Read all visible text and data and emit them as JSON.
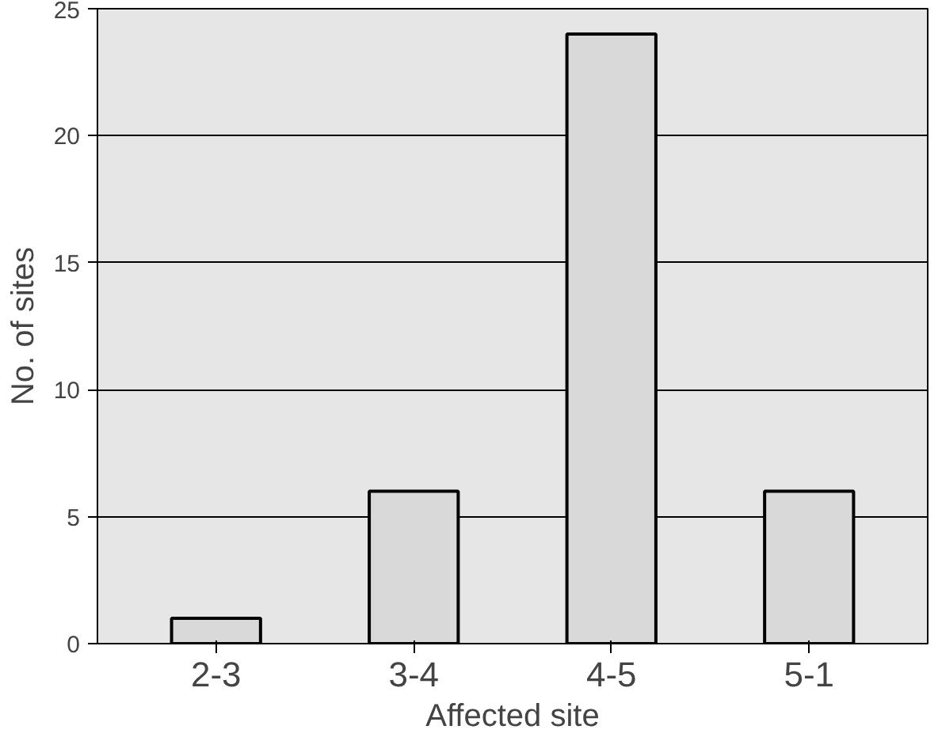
{
  "chart_data": {
    "type": "bar",
    "xlabel": "Affected site",
    "ylabel": "No. of sites",
    "categories": [
      "2-3",
      "3-4",
      "4-5",
      "5-1"
    ],
    "values": [
      1,
      6,
      24,
      6
    ],
    "color": "#d9d9d9",
    "ylim": [
      0,
      25
    ],
    "yticks": [
      0,
      5,
      10,
      15,
      20,
      25
    ],
    "grid": "y"
  }
}
